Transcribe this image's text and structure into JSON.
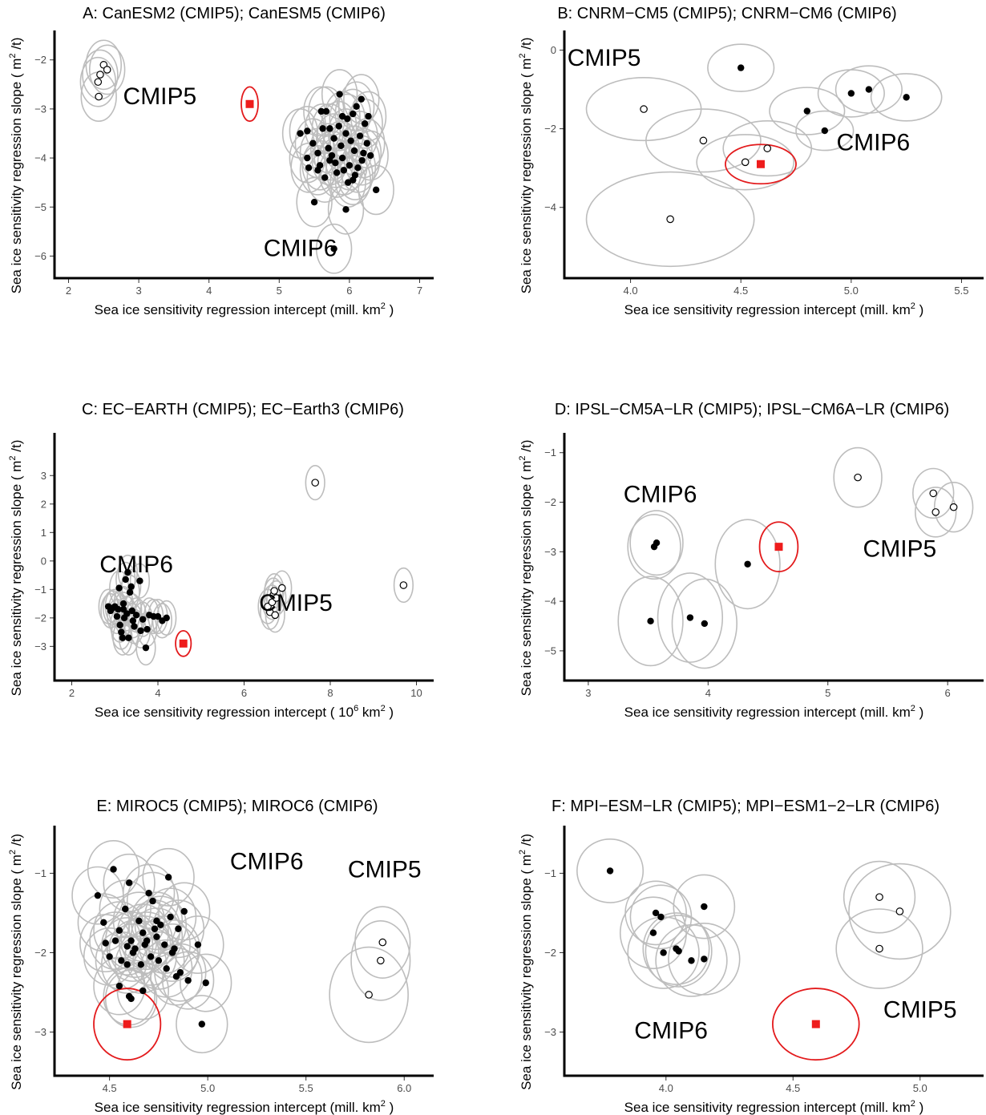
{
  "chart_data": [
    {
      "type": "scatter",
      "title": "A: CanESM2 (CMIP5); CanESM5 (CMIP6)",
      "xlabel": {
        "pre": "Sea ice sensitivity regression intercept (mill.  km",
        "sup": "2",
        "post": " )"
      },
      "ylabel": {
        "pre": "Sea ice sensitivity regression slope ( m",
        "sup": "2",
        "post": " /t)"
      },
      "xlim": [
        1.8,
        7.2
      ],
      "ylim": [
        -6.45,
        -1.4
      ],
      "xticks": [
        2,
        3,
        4,
        5,
        6,
        7
      ],
      "yticks": [
        -2,
        -3,
        -4,
        -5,
        -6
      ],
      "group_labels": [
        {
          "text": "CMIP5",
          "x": 3.3,
          "y": -2.9
        },
        {
          "text": "CMIP6",
          "x": 5.3,
          "y": -6.0
        }
      ],
      "ellipse_axes": [
        0.25,
        0.5
      ],
      "observation": {
        "x": 4.58,
        "y": -2.9,
        "ellipse_axes": [
          0.12,
          0.35
        ]
      },
      "cmip5": [
        [
          2.5,
          -2.1
        ],
        [
          2.55,
          -2.2
        ],
        [
          2.45,
          -2.3
        ],
        [
          2.42,
          -2.45
        ],
        [
          2.43,
          -2.75
        ]
      ],
      "cmip6": [
        [
          5.3,
          -3.5
        ],
        [
          5.4,
          -3.45
        ],
        [
          5.48,
          -3.7
        ],
        [
          5.55,
          -3.9
        ],
        [
          5.62,
          -3.4
        ],
        [
          5.67,
          -3.05
        ],
        [
          5.7,
          -3.8
        ],
        [
          5.72,
          -3.4
        ],
        [
          5.75,
          -3.95
        ],
        [
          5.78,
          -3.6
        ],
        [
          5.8,
          -4.1
        ],
        [
          5.82,
          -4.3
        ],
        [
          5.85,
          -3.35
        ],
        [
          5.86,
          -2.7
        ],
        [
          5.88,
          -3.75
        ],
        [
          5.9,
          -4.0
        ],
        [
          5.92,
          -4.25
        ],
        [
          5.95,
          -3.5
        ],
        [
          5.97,
          -3.2
        ],
        [
          5.98,
          -4.5
        ],
        [
          6.0,
          -4.15
        ],
        [
          6.02,
          -3.65
        ],
        [
          6.05,
          -3.1
        ],
        [
          6.07,
          -3.85
        ],
        [
          6.08,
          -4.35
        ],
        [
          6.1,
          -2.95
        ],
        [
          6.12,
          -4.2
        ],
        [
          6.15,
          -3.55
        ],
        [
          6.17,
          -2.8
        ],
        [
          6.2,
          -3.9
        ],
        [
          6.22,
          -3.3
        ],
        [
          6.25,
          -3.7
        ],
        [
          6.27,
          -3.15
        ],
        [
          6.3,
          -3.95
        ],
        [
          6.38,
          -4.65
        ],
        [
          5.95,
          -5.05
        ],
        [
          5.78,
          -5.85
        ],
        [
          5.5,
          -4.9
        ],
        [
          5.42,
          -4.2
        ],
        [
          5.4,
          -4.0
        ],
        [
          5.55,
          -4.25
        ],
        [
          5.6,
          -3.05
        ],
        [
          5.65,
          -4.4
        ],
        [
          5.72,
          -4.05
        ],
        [
          5.9,
          -3.15
        ],
        [
          6.05,
          -4.45
        ],
        [
          6.18,
          -4.05
        ],
        [
          5.58,
          -4.15
        ]
      ]
    },
    {
      "type": "scatter",
      "title": "B: CNRM−CM5 (CMIP5); CNRM−CM6 (CMIP6)",
      "xlabel": {
        "pre": "Sea ice sensitivity regression intercept (mill.  km",
        "sup": "2",
        "post": " )"
      },
      "ylabel": {
        "pre": "Sea ice sensitivity regression slope ( m",
        "sup": "2",
        "post": " /t)"
      },
      "xlim": [
        3.7,
        5.6
      ],
      "ylim": [
        -5.8,
        0.5
      ],
      "xticks": [
        4.0,
        4.5,
        5.0,
        5.5
      ],
      "yticks": [
        0,
        -2,
        -4
      ],
      "group_labels": [
        {
          "text": "CMIP5",
          "x": 3.88,
          "y": -0.4
        },
        {
          "text": "CMIP6",
          "x": 5.1,
          "y": -2.55
        }
      ],
      "ellipse_axes": [
        0.22,
        0.8
      ],
      "observation": {
        "x": 4.59,
        "y": -2.9,
        "ellipse_axes": [
          0.16,
          0.5
        ]
      },
      "cmip5": [
        [
          4.06,
          -1.5
        ],
        [
          4.33,
          -2.3
        ],
        [
          4.52,
          -2.85
        ],
        [
          4.62,
          -2.5
        ],
        [
          4.18,
          -4.3
        ]
      ],
      "cmip6": [
        [
          4.5,
          -0.45
        ],
        [
          4.8,
          -1.55
        ],
        [
          4.88,
          -2.05
        ],
        [
          5.0,
          -1.1
        ],
        [
          5.08,
          -1.0
        ],
        [
          5.25,
          -1.2
        ]
      ],
      "cmip5_axes": [
        [
          0.26,
          0.8
        ],
        [
          0.26,
          0.8
        ],
        [
          0.22,
          0.7
        ],
        [
          0.2,
          0.7
        ],
        [
          0.38,
          1.2
        ]
      ],
      "cmip6_axes": [
        [
          0.15,
          0.6
        ],
        [
          0.17,
          0.6
        ],
        [
          0.13,
          0.5
        ],
        [
          0.15,
          0.6
        ],
        [
          0.15,
          0.6
        ],
        [
          0.16,
          0.6
        ]
      ]
    },
    {
      "type": "scatter",
      "title": "C: EC−EARTH (CMIP5); EC−Earth3 (CMIP6)",
      "xlabel": {
        "pre": "Sea ice sensitivity regression intercept ( 10",
        "sup": "6",
        "post": "  km",
        "sup2": "2",
        "post2": " )"
      },
      "ylabel": {
        "pre": "Sea ice sensitivity regression slope ( m",
        "sup": "2",
        "post": " /t)"
      },
      "xlim": [
        1.6,
        10.4
      ],
      "ylim": [
        -4.2,
        4.5
      ],
      "xticks": [
        2,
        4,
        6,
        8,
        10
      ],
      "yticks": [
        3,
        2,
        1,
        0,
        -1,
        -2,
        -3
      ],
      "group_labels": [
        {
          "text": "CMIP6",
          "x": 3.5,
          "y": -0.4
        },
        {
          "text": "CMIP5",
          "x": 7.2,
          "y": -1.75
        }
      ],
      "ellipse_axes": [
        0.22,
        0.6
      ],
      "observation": {
        "x": 4.59,
        "y": -2.9,
        "ellipse_axes": [
          0.18,
          0.45
        ]
      },
      "cmip5": [
        [
          7.65,
          2.75
        ],
        [
          6.55,
          -1.6
        ],
        [
          6.6,
          -1.8
        ],
        [
          6.65,
          -1.45
        ],
        [
          6.68,
          -1.2
        ],
        [
          6.7,
          -1.05
        ],
        [
          6.72,
          -1.9
        ],
        [
          6.75,
          -1.3
        ],
        [
          6.88,
          -0.95
        ],
        [
          9.7,
          -0.85
        ]
      ],
      "cmip6": [
        [
          2.85,
          -1.6
        ],
        [
          2.9,
          -1.75
        ],
        [
          2.95,
          -1.65
        ],
        [
          3.0,
          -1.6
        ],
        [
          3.05,
          -1.95
        ],
        [
          3.08,
          -1.7
        ],
        [
          3.1,
          -0.95
        ],
        [
          3.12,
          -2.25
        ],
        [
          3.15,
          -2.5
        ],
        [
          3.18,
          -2.7
        ],
        [
          3.2,
          -1.7
        ],
        [
          3.22,
          -2.0
        ],
        [
          3.25,
          -0.65
        ],
        [
          3.28,
          -1.85
        ],
        [
          3.3,
          -0.4
        ],
        [
          3.32,
          -2.7
        ],
        [
          3.35,
          -1.1
        ],
        [
          3.38,
          -0.9
        ],
        [
          3.4,
          -1.75
        ],
        [
          3.42,
          -2.1
        ],
        [
          3.5,
          -1.9
        ],
        [
          3.58,
          -0.7
        ],
        [
          3.6,
          -2.45
        ],
        [
          3.65,
          -2.05
        ],
        [
          3.72,
          -3.05
        ],
        [
          3.75,
          -2.4
        ],
        [
          3.8,
          -1.9
        ],
        [
          3.9,
          -1.95
        ],
        [
          4.0,
          -1.95
        ],
        [
          4.1,
          -2.1
        ],
        [
          4.2,
          -2.0
        ],
        [
          3.2,
          -1.5
        ],
        [
          3.45,
          -2.3
        ]
      ]
    },
    {
      "type": "scatter",
      "title": "D: IPSL−CM5A−LR (CMIP5); IPSL−CM6A−LR (CMIP6)",
      "xlabel": {
        "pre": "Sea ice sensitivity regression intercept (mill.  km",
        "sup": "2",
        "post": " )"
      },
      "ylabel": {
        "pre": "Sea ice sensitivity regression slope ( m",
        "sup": "2",
        "post": " /t)"
      },
      "xlim": [
        2.8,
        6.3
      ],
      "ylim": [
        -5.6,
        -0.6
      ],
      "xticks": [
        3,
        4,
        5,
        6
      ],
      "yticks": [
        -1,
        -2,
        -3,
        -4,
        -5
      ],
      "group_labels": [
        {
          "text": "CMIP6",
          "x": 3.6,
          "y": -2.0
        },
        {
          "text": "CMIP5",
          "x": 5.6,
          "y": -3.1
        }
      ],
      "ellipse_axes": [
        0.23,
        0.65
      ],
      "observation": {
        "x": 4.59,
        "y": -2.9,
        "ellipse_axes": [
          0.16,
          0.5
        ]
      },
      "cmip5": [
        [
          5.25,
          -1.5
        ],
        [
          5.88,
          -1.82
        ],
        [
          5.9,
          -2.2
        ],
        [
          6.05,
          -2.1
        ]
      ],
      "cmip6": [
        [
          3.55,
          -2.9
        ],
        [
          3.57,
          -2.82
        ],
        [
          3.52,
          -4.4
        ],
        [
          3.85,
          -4.33
        ],
        [
          3.97,
          -4.45
        ],
        [
          4.33,
          -3.25
        ]
      ],
      "cmip5_axes": [
        [
          0.2,
          0.6
        ],
        [
          0.17,
          0.5
        ],
        [
          0.17,
          0.5
        ],
        [
          0.16,
          0.5
        ]
      ],
      "cmip6_axes": [
        [
          0.22,
          0.65
        ],
        [
          0.22,
          0.65
        ],
        [
          0.27,
          0.9
        ],
        [
          0.27,
          0.9
        ],
        [
          0.27,
          0.9
        ],
        [
          0.27,
          0.9
        ]
      ]
    },
    {
      "type": "scatter",
      "title": "E: MIROC5 (CMIP5); MIROC6 (CMIP6)",
      "xlabel": {
        "pre": "Sea ice sensitivity regression intercept (mill.  km",
        "sup": "2",
        "post": " )"
      },
      "ylabel": {
        "pre": "Sea ice sensitivity regression slope ( m",
        "sup": "2",
        "post": " /t)"
      },
      "xlim": [
        4.22,
        6.15
      ],
      "ylim": [
        -3.55,
        -0.4
      ],
      "xticks": [
        4.5,
        5.0,
        5.5,
        6.0
      ],
      "yticks": [
        -1,
        -2,
        -3
      ],
      "group_labels": [
        {
          "text": "CMIP6",
          "x": 5.3,
          "y": -0.95
        },
        {
          "text": "CMIP5",
          "x": 5.9,
          "y": -1.05
        }
      ],
      "ellipse_axes": [
        0.13,
        0.36
      ],
      "observation": {
        "x": 4.59,
        "y": -2.9,
        "ellipse_axes": [
          0.17,
          0.45
        ]
      },
      "cmip5": [
        [
          5.89,
          -1.87
        ],
        [
          5.88,
          -2.1
        ],
        [
          5.82,
          -2.53
        ]
      ],
      "cmip6": [
        [
          4.44,
          -1.28
        ],
        [
          4.47,
          -1.62
        ],
        [
          4.48,
          -1.88
        ],
        [
          4.5,
          -2.05
        ],
        [
          4.52,
          -0.95
        ],
        [
          4.53,
          -1.85
        ],
        [
          4.55,
          -1.72
        ],
        [
          4.56,
          -2.1
        ],
        [
          4.58,
          -1.45
        ],
        [
          4.59,
          -2.15
        ],
        [
          4.6,
          -1.12
        ],
        [
          4.61,
          -1.85
        ],
        [
          4.62,
          -2.0
        ],
        [
          4.63,
          -1.95
        ],
        [
          4.65,
          -1.6
        ],
        [
          4.66,
          -2.15
        ],
        [
          4.67,
          -1.75
        ],
        [
          4.68,
          -1.9
        ],
        [
          4.7,
          -1.25
        ],
        [
          4.71,
          -2.05
        ],
        [
          4.72,
          -1.35
        ],
        [
          4.73,
          -1.7
        ],
        [
          4.74,
          -1.8
        ],
        [
          4.75,
          -2.1
        ],
        [
          4.76,
          -1.65
        ],
        [
          4.78,
          -1.9
        ],
        [
          4.79,
          -2.2
        ],
        [
          4.8,
          -1.05
        ],
        [
          4.81,
          -1.55
        ],
        [
          4.82,
          -2.0
        ],
        [
          4.84,
          -2.3
        ],
        [
          4.85,
          -1.7
        ],
        [
          4.86,
          -2.25
        ],
        [
          4.88,
          -1.48
        ],
        [
          4.9,
          -2.35
        ],
        [
          4.95,
          -1.9
        ],
        [
          4.97,
          -2.9
        ],
        [
          4.99,
          -2.38
        ],
        [
          4.55,
          -2.42
        ],
        [
          4.6,
          -2.55
        ],
        [
          4.61,
          -2.58
        ],
        [
          4.67,
          -2.48
        ],
        [
          4.74,
          -1.6
        ],
        [
          4.69,
          -1.85
        ],
        [
          4.83,
          -1.95
        ],
        [
          4.59,
          -1.92
        ]
      ],
      "cmip5_axes": [
        [
          0.14,
          0.45
        ],
        [
          0.15,
          0.5
        ],
        [
          0.2,
          0.6
        ]
      ]
    },
    {
      "type": "scatter",
      "title": "F: MPI−ESM−LR (CMIP5); MPI−ESM1−2−LR (CMIP6)",
      "xlabel": {
        "pre": "Sea ice sensitivity regression intercept (mill.  km",
        "sup": "2",
        "post": " )"
      },
      "ylabel": {
        "pre": "Sea ice sensitivity regression slope ( m",
        "sup": "2",
        "post": " /t)"
      },
      "xlim": [
        3.6,
        5.25
      ],
      "ylim": [
        -3.55,
        -0.4
      ],
      "xticks": [
        4.0,
        4.5,
        5.0
      ],
      "yticks": [
        -1,
        -2,
        -3
      ],
      "group_labels": [
        {
          "text": "CMIP6",
          "x": 4.02,
          "y": -3.08
        },
        {
          "text": "CMIP5",
          "x": 5.0,
          "y": -2.82
        }
      ],
      "ellipse_axes": [
        0.13,
        0.4
      ],
      "observation": {
        "x": 4.59,
        "y": -2.9,
        "ellipse_axes": [
          0.17,
          0.45
        ]
      },
      "cmip5": [
        [
          4.84,
          -1.3
        ],
        [
          4.92,
          -1.48
        ],
        [
          4.84,
          -1.95
        ]
      ],
      "cmip6": [
        [
          3.78,
          -0.97
        ],
        [
          3.96,
          -1.5
        ],
        [
          3.98,
          -1.55
        ],
        [
          3.95,
          -1.75
        ],
        [
          4.04,
          -1.95
        ],
        [
          4.05,
          -1.98
        ],
        [
          3.99,
          -2.0
        ],
        [
          4.1,
          -2.1
        ],
        [
          4.15,
          -2.08
        ],
        [
          4.15,
          -1.42
        ]
      ],
      "cmip5_axes": [
        [
          0.14,
          0.45
        ],
        [
          0.2,
          0.6
        ],
        [
          0.17,
          0.5
        ]
      ],
      "cmip6_axes": [
        [
          0.13,
          0.4
        ],
        [
          0.12,
          0.4
        ],
        [
          0.12,
          0.4
        ],
        [
          0.13,
          0.45
        ],
        [
          0.13,
          0.45
        ],
        [
          0.13,
          0.45
        ],
        [
          0.14,
          0.45
        ],
        [
          0.14,
          0.45
        ],
        [
          0.14,
          0.45
        ],
        [
          0.12,
          0.4
        ]
      ]
    }
  ]
}
